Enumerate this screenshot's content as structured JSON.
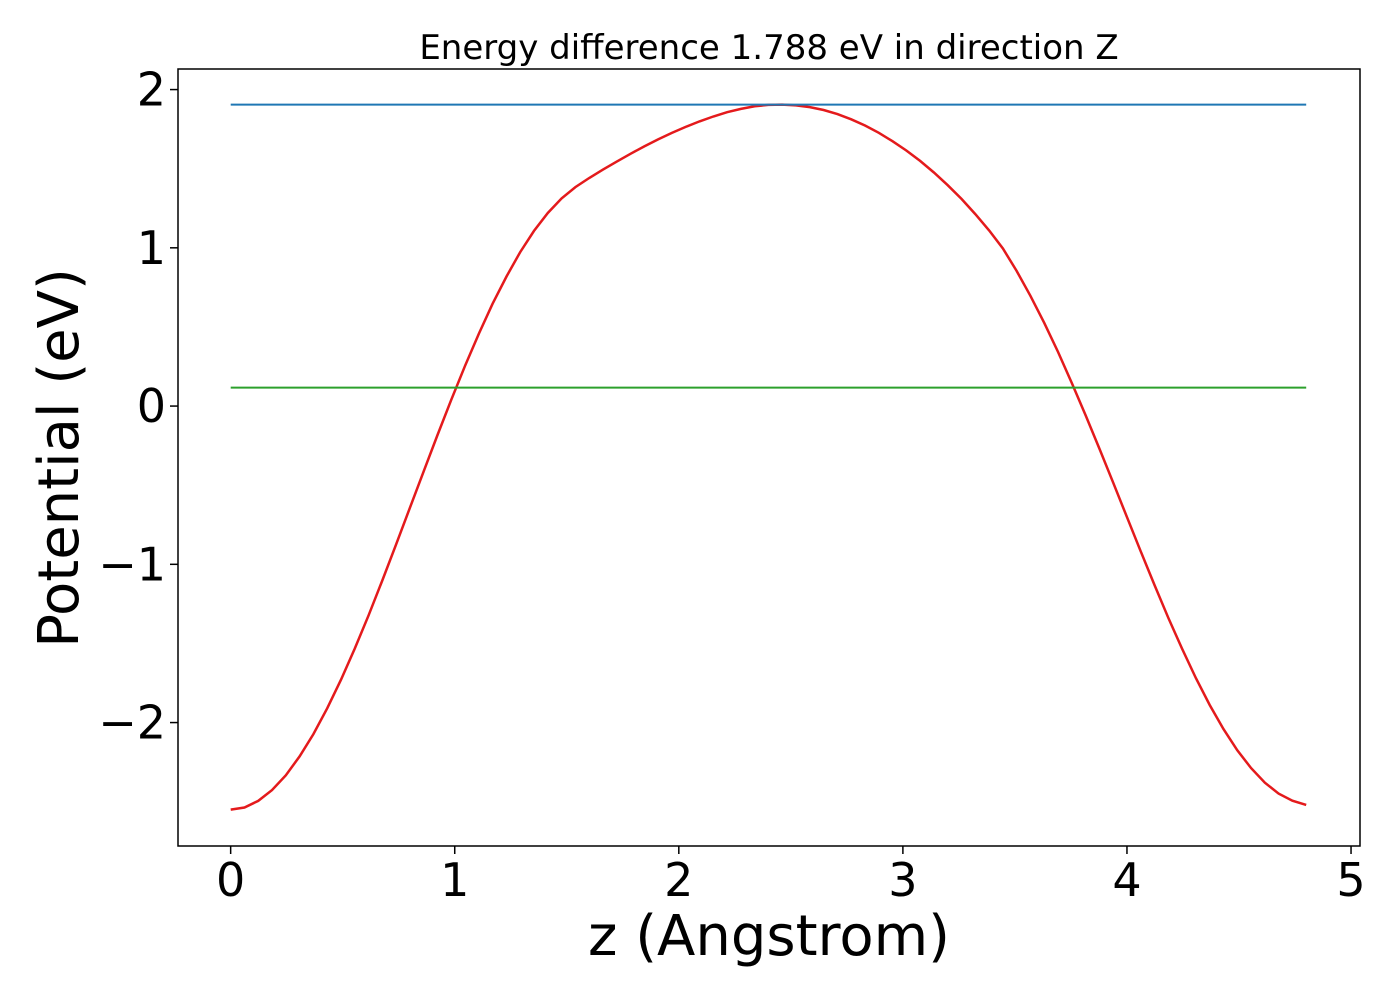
{
  "chart_data": {
    "type": "line",
    "title": "Energy difference 1.788 eV in direction Z",
    "xlabel": "z (Angstrom)",
    "ylabel": "Potential (eV)",
    "xlim": [
      -0.235,
      5.04
    ],
    "ylim": [
      -2.78,
      2.13
    ],
    "x_ticks": [
      0,
      1,
      2,
      3,
      4,
      5
    ],
    "x_tick_labels": [
      "0",
      "1",
      "2",
      "3",
      "4",
      "5"
    ],
    "y_ticks": [
      -2,
      -1,
      0,
      1,
      2
    ],
    "y_tick_labels": [
      "−2",
      "−1",
      "0",
      "1",
      "2"
    ],
    "grid": false,
    "series": [
      {
        "type": "curve",
        "color": "#e41a1c",
        "x": [
          0,
          0.0616,
          0.1231,
          0.1846,
          0.2462,
          0.3077,
          0.3692,
          0.4308,
          0.4923,
          0.5538,
          0.6154,
          0.6769,
          0.7385,
          0.8,
          0.8615,
          0.9231,
          0.9846,
          1.0462,
          1.1077,
          1.1692,
          1.2308,
          1.2923,
          1.3538,
          1.4154,
          1.4769,
          1.5385,
          1.6,
          1.6615,
          1.7231,
          1.7846,
          1.8462,
          1.9077,
          1.9692,
          2.0308,
          2.0923,
          2.1538,
          2.2154,
          2.2769,
          2.3385,
          2.4,
          2.4615,
          2.5231,
          2.5846,
          2.6462,
          2.7077,
          2.7692,
          2.8308,
          2.8923,
          2.9538,
          3.0154,
          3.0769,
          3.1385,
          3.2,
          3.2615,
          3.3231,
          3.3846,
          3.4462,
          3.5077,
          3.5692,
          3.6308,
          3.6923,
          3.7538,
          3.8154,
          3.8769,
          3.9385,
          4.0,
          4.0615,
          4.1231,
          4.1846,
          4.2462,
          4.3077,
          4.3692,
          4.4308,
          4.4923,
          4.5538,
          4.6154,
          4.6769,
          4.7385,
          4.8
        ],
        "y": [
          -2.55,
          -2.537,
          -2.495,
          -2.427,
          -2.333,
          -2.214,
          -2.073,
          -1.91,
          -1.729,
          -1.532,
          -1.322,
          -1.102,
          -0.874,
          -0.643,
          -0.412,
          -0.183,
          0.04,
          0.255,
          0.458,
          0.647,
          0.819,
          0.973,
          1.107,
          1.22,
          1.312,
          1.384,
          1.441,
          1.494,
          1.545,
          1.594,
          1.641,
          1.685,
          1.726,
          1.764,
          1.799,
          1.83,
          1.857,
          1.878,
          1.894,
          1.903,
          1.905,
          1.9,
          1.889,
          1.871,
          1.845,
          1.812,
          1.773,
          1.727,
          1.674,
          1.615,
          1.549,
          1.476,
          1.396,
          1.309,
          1.213,
          1.11,
          0.996,
          0.854,
          0.697,
          0.526,
          0.342,
          0.146,
          -0.058,
          -0.269,
          -0.484,
          -0.702,
          -0.918,
          -1.131,
          -1.338,
          -1.534,
          -1.719,
          -1.889,
          -2.041,
          -2.175,
          -2.288,
          -2.38,
          -2.449,
          -2.494,
          -2.52
        ]
      },
      {
        "type": "hline",
        "color": "#1f77b4",
        "x": [
          0,
          4.8
        ],
        "y": [
          1.905,
          1.905
        ]
      },
      {
        "type": "hline",
        "color": "#2ca02c",
        "x": [
          0,
          4.8
        ],
        "y": [
          0.117,
          0.117
        ]
      }
    ]
  }
}
